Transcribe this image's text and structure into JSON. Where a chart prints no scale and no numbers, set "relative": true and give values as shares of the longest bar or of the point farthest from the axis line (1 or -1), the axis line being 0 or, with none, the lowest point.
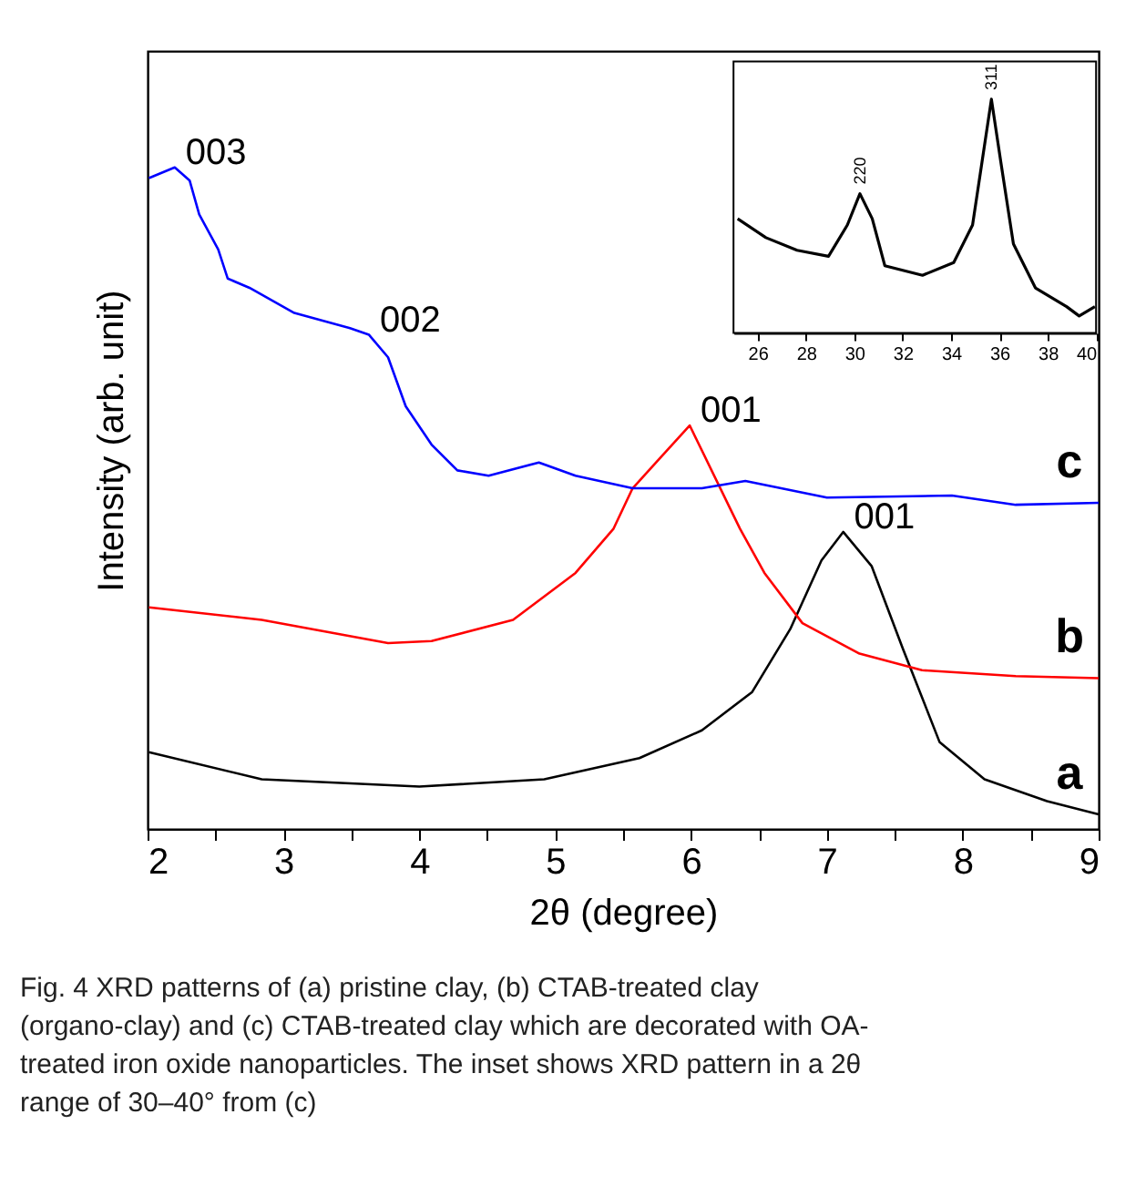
{
  "chart_data": [
    {
      "type": "line",
      "relative": true,
      "xlabel": "2θ (degree)",
      "ylabel": "Intensity (arb. unit)",
      "tick_labels": "x",
      "xlim": [
        2,
        9
      ],
      "xticks": [
        2,
        {
          "value": 2.5,
          "label": null
        },
        3,
        {
          "value": 3.5,
          "label": null
        },
        4,
        {
          "value": 4.5,
          "label": null
        },
        5,
        {
          "value": 5.5,
          "label": null
        },
        6,
        {
          "value": 6.5,
          "label": null
        },
        7,
        {
          "value": 7.5,
          "label": null
        },
        8,
        {
          "value": 8.5,
          "label": null
        },
        9
      ],
      "series": [
        {
          "name": "a",
          "color": "#000000",
          "x": [
            2.01,
            2.84,
            4.0,
            4.92,
            5.62,
            6.08,
            6.45,
            6.73,
            6.96,
            7.12,
            7.33,
            7.56,
            7.83,
            8.16,
            8.62,
            9.0
          ],
          "values": [
            0.116,
            0.075,
            0.064,
            0.075,
            0.107,
            0.149,
            0.207,
            0.302,
            0.406,
            0.449,
            0.397,
            0.272,
            0.131,
            0.075,
            0.042,
            0.022
          ]
        },
        {
          "name": "b",
          "color": "#ff0000",
          "x": [
            2.01,
            2.84,
            3.77,
            4.09,
            4.69,
            5.15,
            5.43,
            5.57,
            5.99,
            6.36,
            6.54,
            6.82,
            7.24,
            7.7,
            8.39,
            9.0
          ],
          "values": [
            0.335,
            0.316,
            0.281,
            0.284,
            0.316,
            0.387,
            0.454,
            0.515,
            0.61,
            0.454,
            0.387,
            0.311,
            0.265,
            0.24,
            0.231,
            0.228
          ]
        },
        {
          "name": "c",
          "color": "#0000ff",
          "x": [
            2.01,
            2.2,
            2.31,
            2.38,
            2.52,
            2.59,
            2.75,
            3.08,
            3.49,
            3.63,
            3.77,
            3.9,
            4.09,
            4.28,
            4.51,
            4.88,
            5.15,
            5.57,
            6.08,
            6.4,
            7.0,
            7.92,
            8.39,
            9.0
          ],
          "values": [
            0.984,
            1.0,
            0.98,
            0.929,
            0.876,
            0.832,
            0.818,
            0.78,
            0.757,
            0.747,
            0.713,
            0.639,
            0.581,
            0.542,
            0.534,
            0.554,
            0.534,
            0.515,
            0.515,
            0.526,
            0.501,
            0.504,
            0.49,
            0.493
          ]
        }
      ],
      "annotations": [
        {
          "text": "003",
          "x": 2.2,
          "y": 1.0
        },
        {
          "text": "002",
          "x": 3.63,
          "y": 0.747
        },
        {
          "text": "001",
          "x": 5.99,
          "y": 0.61
        },
        {
          "text": "001",
          "x": 7.12,
          "y": 0.449
        },
        "Fig. 4  XRD patterns of (a) pristine clay, (b) CTAB-treated clay (organo-clay) and (c) CTAB-treated clay which are decorated with OA-treated iron oxide nanoparticles. The inset shows XRD pattern in a 2θ range of 30–40° from (c)"
      ]
    },
    {
      "type": "line",
      "relative": true,
      "tick_labels": "x",
      "xlim": [
        25,
        40
      ],
      "xticks": [
        26,
        28,
        30,
        32,
        34,
        36,
        38,
        40
      ],
      "series": [
        {
          "color": "#000000",
          "x": [
            25.17,
            26.34,
            27.63,
            28.93,
            29.71,
            30.23,
            30.74,
            31.26,
            32.82,
            34.11,
            34.89,
            35.28,
            35.67,
            36.06,
            36.58,
            37.49,
            38.78,
            39.3,
            39.95
          ],
          "values": [
            0.489,
            0.408,
            0.354,
            0.328,
            0.462,
            0.596,
            0.489,
            0.288,
            0.247,
            0.301,
            0.462,
            0.731,
            1.0,
            0.731,
            0.381,
            0.193,
            0.113,
            0.073,
            0.113
          ]
        }
      ],
      "annotations": [
        {
          "text": "220",
          "x": 30.23,
          "y": 0.596
        },
        {
          "text": "311",
          "x": 35.67,
          "y": 1.0
        }
      ]
    }
  ]
}
